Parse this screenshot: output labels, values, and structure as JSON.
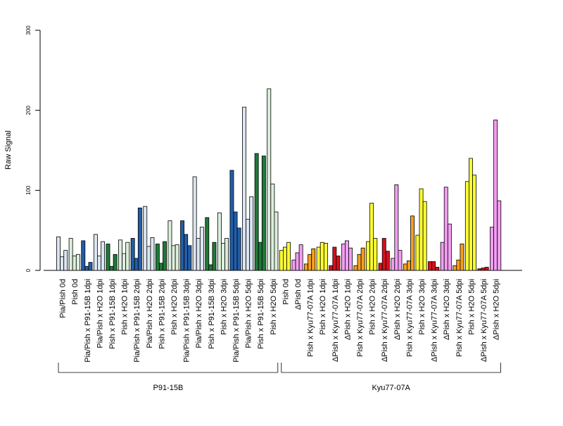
{
  "chart_data": {
    "type": "bar",
    "title": "",
    "xlabel": "",
    "ylabel": "Raw Signal",
    "ylim": [
      0,
      300
    ],
    "yticks": [
      0,
      100,
      200,
      300
    ],
    "ytick_labels": [
      "0",
      "100",
      "200",
      "300"
    ],
    "grid": false,
    "categories": [
      "Pia/Pish 0d",
      "Pish 0d",
      "Pia/Pish x P91-15B 1dpi",
      "Pia/Pish x H2O 1dpi",
      "Pish x P91-15B 1dpi",
      "Pish x H2O 1dpi",
      "Pia/Pish x P91-15B 2dpi",
      "Pia/Pish x H2O 2dpi",
      "Pish x P91-15B 2dpi",
      "Pish x H2O 2dpi",
      "Pia/Pish x P91-15B 3dpi",
      "Pia/Pish x H2O 3dpi",
      "Pish x P91-15B 3dpi",
      "Pish x H2O 3dpi",
      "Pia/Pish x P91-15B 5dpi",
      "Pia/Pish x H2O 5dpi",
      "Pish x P91-15B 5dpi",
      "Pish x H2O 5dpi",
      "Pish 0d",
      "ΔPish 0d",
      "Pish x Kyu77-07A 1dpi",
      "Pish x H2O 1dpi",
      "ΔPish x Kyu77-07A 1dpi",
      "ΔPish x H2O 1dpi",
      "Pish x Kyu77-07A 2dpi",
      "Pish x H2O 2dpi",
      "ΔPish x Kyu77-07A 2dpi",
      "ΔPish x H2O 2dpi",
      "Pish x Kyu77-07A 3dpi",
      "Pish x H2O 3dpi",
      "ΔPish x Kyu77-07A 3dpi",
      "ΔPish x H2O 3dpi",
      "Pish x Kyu77-07A 5dpi",
      "Pish x H2O 5dpi",
      "ΔPish x Kyu77-07A 5dpi",
      "ΔPish x H2O 5dpi"
    ],
    "values": [
      [
        42,
        17,
        25
      ],
      [
        40,
        18,
        20
      ],
      [
        37,
        5,
        10
      ],
      [
        45,
        18,
        36
      ],
      [
        33,
        5,
        20
      ],
      [
        38,
        21,
        35
      ],
      [
        40,
        15,
        78
      ],
      [
        80,
        30,
        41
      ],
      [
        33,
        9,
        36
      ],
      [
        62,
        31,
        32
      ],
      [
        62,
        45,
        31
      ],
      [
        117,
        40,
        54
      ],
      [
        66,
        7,
        35
      ],
      [
        72,
        34,
        40
      ],
      [
        125,
        73,
        53
      ],
      [
        204,
        64,
        92
      ],
      [
        146,
        35,
        143
      ],
      [
        227,
        108,
        73
      ],
      [
        25,
        29,
        35
      ],
      [
        13,
        22,
        32
      ],
      [
        8,
        20,
        27
      ],
      [
        29,
        35,
        34
      ],
      [
        6,
        29,
        18
      ],
      [
        33,
        37,
        28
      ],
      [
        6,
        20,
        28
      ],
      [
        36,
        84,
        40
      ],
      [
        9,
        40,
        24
      ],
      [
        15,
        107,
        25
      ],
      [
        8,
        12,
        68
      ],
      [
        44,
        102,
        86
      ],
      [
        11,
        11,
        4
      ],
      [
        35,
        104,
        58
      ],
      [
        6,
        13,
        33
      ],
      [
        111,
        140,
        119
      ],
      [
        2,
        3,
        4
      ],
      [
        54,
        188,
        87
      ]
    ],
    "category_colors": [
      "#dce6f2",
      "#ddeedd",
      "#225ea8",
      "#dce6f2",
      "#1f7a38",
      "#ddeedd",
      "#225ea8",
      "#dce6f2",
      "#1f7a38",
      "#ddeedd",
      "#225ea8",
      "#dce6f2",
      "#1f7a38",
      "#ddeedd",
      "#225ea8",
      "#dce6f2",
      "#1f7a38",
      "#ddeedd",
      "#ffff33",
      "#f29ef2",
      "#f5a020",
      "#ffff33",
      "#d7101c",
      "#f29ef2",
      "#f5a020",
      "#ffff33",
      "#d7101c",
      "#f29ef2",
      "#f5a020",
      "#ffff33",
      "#d7101c",
      "#f29ef2",
      "#f5a020",
      "#ffff33",
      "#d7101c",
      "#f29ef2"
    ],
    "groups": [
      {
        "label": "P91-15B",
        "from": 0,
        "to": 17
      },
      {
        "label": "Kyu77-07A",
        "from": 18,
        "to": 35
      }
    ]
  }
}
